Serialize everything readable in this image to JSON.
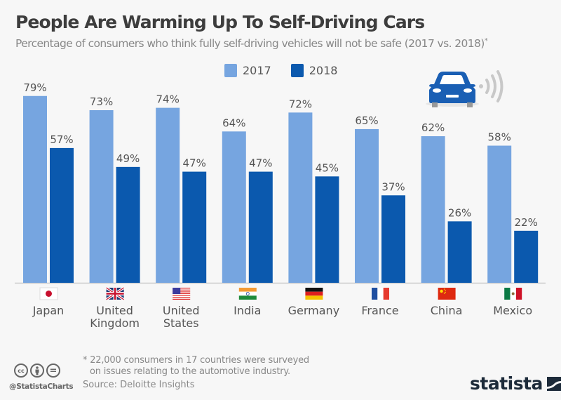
{
  "header": {
    "title": "People Are Warming Up To Self-Driving Cars",
    "subtitle": "Percentage of consumers who think fully self-driving vehicles will not be safe (2017 vs. 2018)",
    "subtitle_marker": "*"
  },
  "colors": {
    "series_2017": "#76a5e0",
    "series_2018": "#0b59ae",
    "axis": "#cccccc",
    "label_text": "#555555",
    "car_icon": "#1a5fb4",
    "signal_icon": "#c8c8c8",
    "brand": "#1d2b3a"
  },
  "chart_data": {
    "type": "bar",
    "title": "People Are Warming Up To Self-Driving Cars",
    "subtitle": "Percentage of consumers who think fully self-driving vehicles will not be safe (2017 vs. 2018)*",
    "xlabel": "",
    "ylabel": "",
    "ylim": [
      0,
      100
    ],
    "grid": false,
    "legend_position": "top-center",
    "value_suffix": "%",
    "categories": [
      "Japan",
      "United Kingdom",
      "United States",
      "India",
      "Germany",
      "France",
      "China",
      "Mexico"
    ],
    "category_label_lines": [
      [
        "Japan"
      ],
      [
        "United",
        "Kingdom"
      ],
      [
        "United",
        "States"
      ],
      [
        "India"
      ],
      [
        "Germany"
      ],
      [
        "France"
      ],
      [
        "China"
      ],
      [
        "Mexico"
      ]
    ],
    "category_flags": [
      "japan-flag",
      "uk-flag",
      "us-flag",
      "india-flag",
      "germany-flag",
      "france-flag",
      "china-flag",
      "mexico-flag"
    ],
    "series": [
      {
        "name": "2017",
        "values": [
          79,
          73,
          74,
          64,
          72,
          65,
          62,
          58
        ]
      },
      {
        "name": "2018",
        "values": [
          57,
          49,
          47,
          47,
          45,
          37,
          26,
          22
        ]
      }
    ]
  },
  "icons": {
    "car": "self-driving-car-icon",
    "signal": "wireless-signal-icon"
  },
  "footer": {
    "footnote_line1": "* 22,000 consumers in 17 countries were surveyed",
    "footnote_line2": "on issues relating to the automotive industry.",
    "source": "Source: Deloitte Insights",
    "handle": "@StatistaCharts",
    "cc_icons": [
      "cc",
      "by",
      "nd"
    ],
    "cc_label": "cc",
    "nd_label": "=",
    "brand": "statista"
  }
}
